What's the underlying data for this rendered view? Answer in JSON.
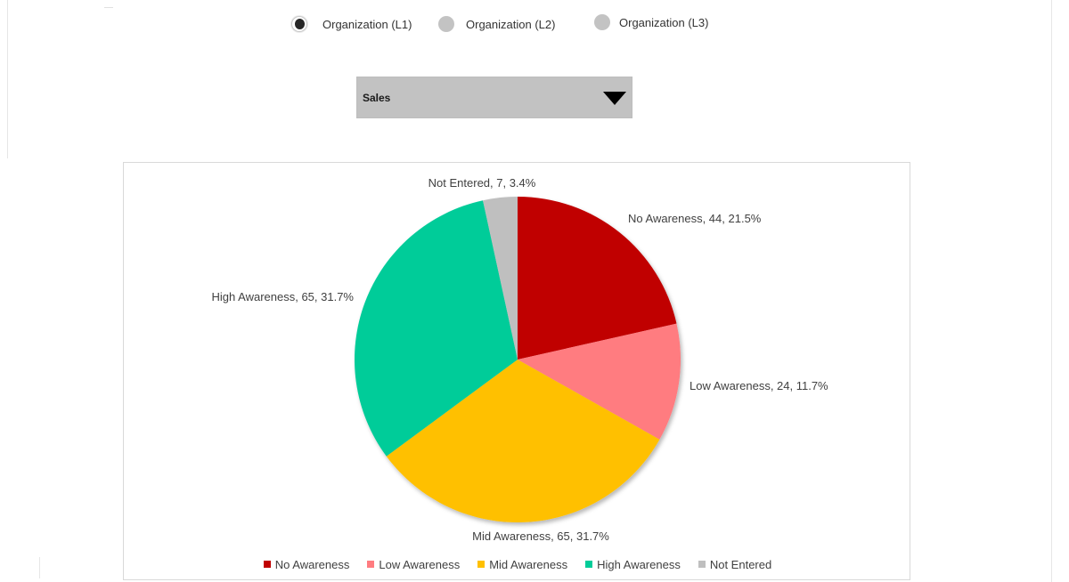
{
  "org_selector": {
    "options": [
      {
        "label": "Organization (L1)",
        "selected": true
      },
      {
        "label": "Organization (L2)",
        "selected": false
      },
      {
        "label": "Organization (L3)",
        "selected": false
      }
    ]
  },
  "department_dropdown": {
    "value": "Sales"
  },
  "chart_data": {
    "type": "pie",
    "title": "",
    "legend_position": "bottom",
    "slices": [
      {
        "label": "No Awareness",
        "value": 44,
        "percent": 21.5,
        "color": "#C00000",
        "data_label": "No Awareness, 44, 21.5%"
      },
      {
        "label": "Low Awareness",
        "value": 24,
        "percent": 11.7,
        "color": "#FF7C80",
        "data_label": "Low Awareness, 24, 11.7%"
      },
      {
        "label": "Mid Awareness",
        "value": 65,
        "percent": 31.7,
        "color": "#FFC000",
        "data_label": "Mid Awareness, 65, 31.7%"
      },
      {
        "label": "High Awareness",
        "value": 65,
        "percent": 31.7,
        "color": "#00CC99",
        "data_label": "High Awareness, 65, 31.7%"
      },
      {
        "label": "Not Entered",
        "value": 7,
        "percent": 3.4,
        "color": "#BFBFBF",
        "data_label": "Not Entered, 7, 3.4%"
      }
    ]
  }
}
